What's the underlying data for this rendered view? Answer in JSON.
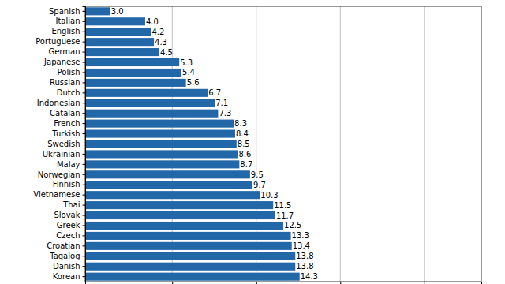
{
  "chart_data": {
    "type": "bar",
    "orientation": "horizontal",
    "log": "x",
    "grid": true,
    "data_labels": true,
    "tick_labels": "y",
    "color": "#2268a8",
    "categories": [
      "Spanish",
      "Italian",
      "English",
      "Portuguese",
      "German",
      "Japanese",
      "Polish",
      "Russian",
      "Dutch",
      "Indonesian",
      "Catalan",
      "French",
      "Turkish",
      "Swedish",
      "Ukrainian",
      "Malay",
      "Norwegian",
      "Finnish",
      "Vietnamese",
      "Thai",
      "Slovak",
      "Greek",
      "Czech",
      "Croatian",
      "Tagalog",
      "Danish",
      "Korean"
    ],
    "values": [
      3.0,
      4.0,
      4.2,
      4.3,
      4.5,
      5.3,
      5.4,
      5.6,
      6.7,
      7.1,
      7.3,
      8.3,
      8.4,
      8.5,
      8.6,
      8.7,
      9.5,
      9.7,
      10.3,
      11.5,
      11.7,
      12.5,
      13.3,
      13.4,
      13.8,
      13.8,
      14.3
    ],
    "value_labels": [
      "3.0",
      "4.0",
      "4.2",
      "4.3",
      "4.5",
      "5.3",
      "5.4",
      "5.6",
      "6.7",
      "7.1",
      "7.3",
      "8.3",
      "8.4",
      "8.5",
      "8.6",
      "8.7",
      "9.5",
      "9.7",
      "10.3",
      "11.5",
      "11.7",
      "12.5",
      "13.3",
      "13.4",
      "13.8",
      "13.8",
      "14.3"
    ],
    "xlim": [
      2.44,
      64
    ],
    "xticks": [
      5,
      10,
      20,
      40
    ]
  }
}
